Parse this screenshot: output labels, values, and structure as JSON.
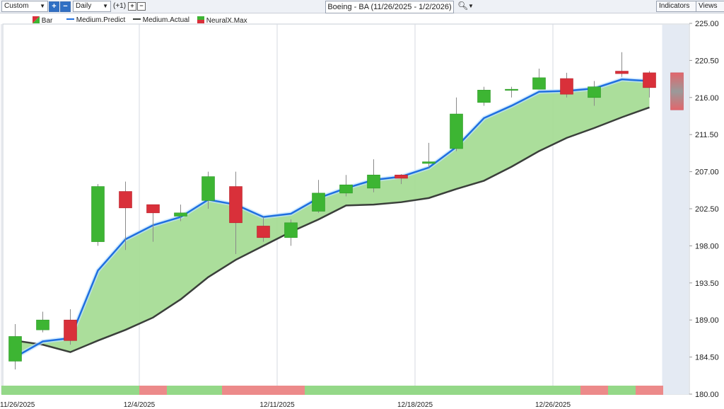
{
  "toolbar": {
    "range_select": "Custom",
    "period_select": "Daily",
    "offset_label": "(+1)",
    "title": "Boeing - BA (11/26/2025 - 1/2/2026)",
    "indicators_label": "Indicators",
    "views_label": "Views"
  },
  "legend": {
    "bar": "Bar",
    "predict": "Medium.Predict",
    "actual": "Medium.Actual",
    "neural": "NeuralX.Max"
  },
  "colors": {
    "up": "#3db533",
    "down": "#d9303a",
    "predict": "#1f6fe0",
    "actual": "#3a3f3a",
    "fill": "#a6dc96",
    "strip_up": "#94d888",
    "strip_down": "#ec8a8a",
    "forecast_bg": "#e4eaf3"
  },
  "chart_data": {
    "type": "candlestick",
    "ylim": [
      180.0,
      225.0
    ],
    "y_ticks": [
      "225.00",
      "220.50",
      "216.00",
      "211.50",
      "207.00",
      "202.50",
      "198.00",
      "193.50",
      "189.00",
      "184.50",
      "180.00"
    ],
    "x_tick_labels": [
      {
        "index": 0,
        "label": "11/26/2025"
      },
      {
        "index": 5,
        "label": "12/4/2025"
      },
      {
        "index": 10,
        "label": "12/11/2025"
      },
      {
        "index": 15,
        "label": "12/18/2025"
      },
      {
        "index": 20,
        "label": "12/26/2025"
      }
    ],
    "candles": [
      {
        "o": 184.0,
        "h": 188.5,
        "l": 183.0,
        "c": 187.0
      },
      {
        "o": 187.8,
        "h": 190.0,
        "l": 187.5,
        "c": 189.0
      },
      {
        "o": 189.0,
        "h": 190.3,
        "l": 186.0,
        "c": 186.5
      },
      {
        "o": 198.5,
        "h": 205.5,
        "l": 198.0,
        "c": 205.2
      },
      {
        "o": 204.6,
        "h": 205.8,
        "l": 197.5,
        "c": 202.6
      },
      {
        "o": 203.0,
        "h": 203.0,
        "l": 198.5,
        "c": 202.0
      },
      {
        "o": 201.6,
        "h": 203.0,
        "l": 201.0,
        "c": 202.0
      },
      {
        "o": 203.5,
        "h": 207.0,
        "l": 202.5,
        "c": 206.4
      },
      {
        "o": 205.2,
        "h": 207.0,
        "l": 197.0,
        "c": 200.8
      },
      {
        "o": 200.4,
        "h": 201.5,
        "l": 198.5,
        "c": 199.0
      },
      {
        "o": 199.0,
        "h": 201.2,
        "l": 198.0,
        "c": 200.8
      },
      {
        "o": 202.2,
        "h": 206.0,
        "l": 202.0,
        "c": 204.4
      },
      {
        "o": 204.4,
        "h": 206.6,
        "l": 204.0,
        "c": 205.4
      },
      {
        "o": 205.0,
        "h": 208.5,
        "l": 204.5,
        "c": 206.6
      },
      {
        "o": 206.6,
        "h": 206.7,
        "l": 205.5,
        "c": 206.2
      },
      {
        "o": 208.0,
        "h": 210.5,
        "l": 207.5,
        "c": 208.2
      },
      {
        "o": 209.8,
        "h": 216.0,
        "l": 209.5,
        "c": 214.0
      },
      {
        "o": 215.4,
        "h": 217.3,
        "l": 215.0,
        "c": 216.9
      },
      {
        "o": 217.0,
        "h": 217.3,
        "l": 216.0,
        "c": 217.0
      },
      {
        "o": 217.0,
        "h": 219.5,
        "l": 217.0,
        "c": 218.4
      },
      {
        "o": 218.3,
        "h": 219.0,
        "l": 216.0,
        "c": 216.4
      },
      {
        "o": 216.0,
        "h": 218.0,
        "l": 215.0,
        "c": 217.3
      },
      {
        "o": 219.2,
        "h": 221.5,
        "l": 218.5,
        "c": 218.9
      },
      {
        "o": 219.0,
        "h": 219.2,
        "l": 216.0,
        "c": 217.2
      }
    ],
    "medium_predict": [
      184.5,
      186.4,
      186.8,
      195.0,
      198.8,
      200.5,
      201.5,
      203.6,
      203.0,
      201.5,
      201.9,
      203.8,
      205.0,
      206.0,
      206.4,
      207.5,
      210.0,
      213.5,
      215.0,
      216.7,
      216.8,
      217.1,
      218.2,
      218.0
    ],
    "medium_actual": [
      186.5,
      186.0,
      185.1,
      186.5,
      187.8,
      189.3,
      191.5,
      194.2,
      196.3,
      198.0,
      199.7,
      201.2,
      202.9,
      203.0,
      203.3,
      203.8,
      204.9,
      205.9,
      207.6,
      209.5,
      211.1,
      212.3,
      213.6,
      214.8
    ],
    "neural_max_forecast": {
      "high": 219.0,
      "low": 214.5
    },
    "signal_strip": [
      "up",
      "up",
      "up",
      "up",
      "up",
      "down",
      "up",
      "up",
      "down",
      "down",
      "down",
      "up",
      "up",
      "up",
      "up",
      "up",
      "up",
      "up",
      "up",
      "up",
      "up",
      "down",
      "up",
      "down"
    ]
  }
}
